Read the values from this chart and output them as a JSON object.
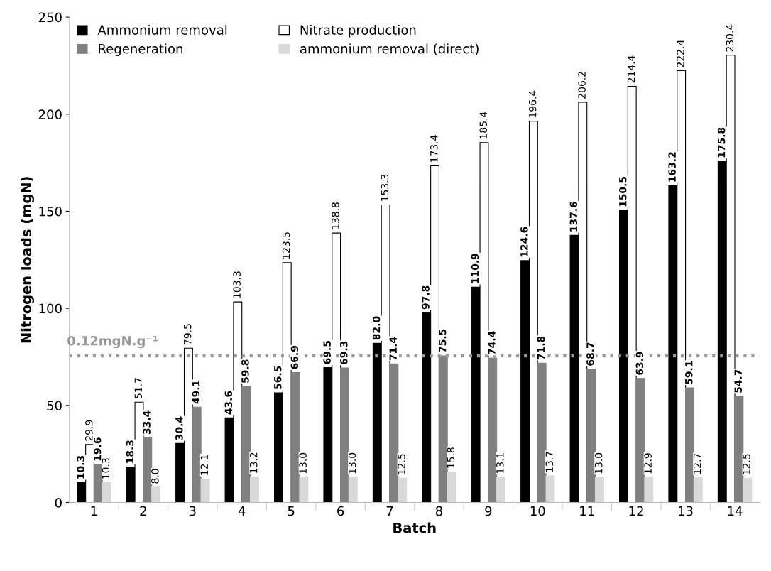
{
  "chart_data": {
    "type": "bar",
    "xlabel": "Batch",
    "ylabel": "Nitrogen loads (mgN)",
    "categories": [
      "1",
      "2",
      "3",
      "4",
      "5",
      "6",
      "7",
      "8",
      "9",
      "10",
      "11",
      "12",
      "13",
      "14"
    ],
    "series": [
      {
        "name": "Ammonium removal",
        "color": "#000000",
        "values": [
          10.3,
          18.3,
          30.4,
          43.6,
          56.5,
          69.5,
          82.0,
          97.8,
          110.9,
          124.6,
          137.6,
          150.5,
          163.2,
          175.8
        ],
        "value_labels": [
          "10.3",
          "18.3",
          "30.4",
          "43.6",
          "56.5",
          "69.5",
          "82.0",
          "97.8",
          "110.9",
          "124.6",
          "137.6",
          "150.5",
          "163.2",
          "175.8"
        ]
      },
      {
        "name": "Nitrate production",
        "color": "#ffffff",
        "values": [
          29.9,
          51.7,
          79.5,
          103.3,
          123.5,
          138.8,
          153.3,
          173.4,
          185.4,
          196.4,
          206.2,
          214.4,
          222.4,
          230.4
        ],
        "value_labels": [
          "29.9",
          "51.7",
          "79.5",
          "103.3",
          "123.5",
          "138.8",
          "153.3",
          "173.4",
          "185.4",
          "196.4",
          "206.2",
          "214.4",
          "222.4",
          "230.4"
        ]
      },
      {
        "name": "Regeneration",
        "color": "#808080",
        "values": [
          19.6,
          33.4,
          49.1,
          59.8,
          66.9,
          69.3,
          71.4,
          75.5,
          74.4,
          71.8,
          68.7,
          63.9,
          59.1,
          54.7
        ],
        "value_labels": [
          "19.6",
          "33.4",
          "49.1",
          "59.8",
          "66.9",
          "69.3",
          "71.4",
          "75.5",
          "74.4",
          "71.8",
          "68.7",
          "63.9",
          "59.1",
          "54.7"
        ]
      },
      {
        "name": "ammonium removal (direct)",
        "color": "#d9d9d9",
        "values": [
          10.3,
          8.0,
          12.1,
          13.2,
          13.0,
          13.0,
          12.5,
          15.8,
          13.1,
          13.7,
          13.0,
          12.9,
          12.7,
          12.5
        ],
        "value_labels": [
          "10.3",
          "8.0",
          "12.1",
          "13.2",
          "13.0",
          "13.0",
          "12.5",
          "15.8",
          "13.1",
          "13.7",
          "13.0",
          "12.9",
          "12.7",
          "12.5"
        ]
      }
    ],
    "ylim": [
      0,
      250
    ],
    "yticks": [
      0,
      50,
      100,
      150,
      200,
      250
    ],
    "ref_lines": [
      {
        "axis": "y",
        "value": 75.5,
        "label": "0.12mgN.g⁻¹",
        "color": "#999999",
        "line_style": "dotted"
      }
    ],
    "grid": false,
    "legend": "top left"
  }
}
